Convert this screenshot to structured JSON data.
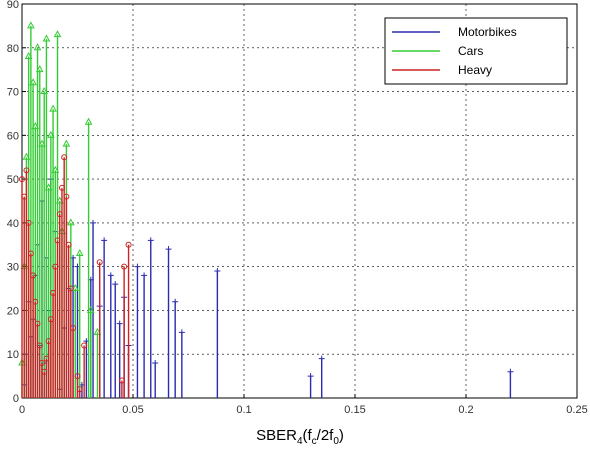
{
  "chart_data": {
    "type": "stem",
    "title": "",
    "xlabel": {
      "base": "SBER",
      "sub1": "4",
      "mid": "(f",
      "sub2": "c",
      "mid2": "/2f",
      "sub3": "0",
      "end": ")"
    },
    "ylabel": "",
    "xlim": [
      0,
      0.25
    ],
    "ylim": [
      0,
      90
    ],
    "xticks": [
      0,
      0.05,
      0.1,
      0.15,
      0.2,
      0.25
    ],
    "xtick_labels": [
      "0",
      "0.05",
      "0.1",
      "0.15",
      "0.2",
      "0.25"
    ],
    "yticks": [
      0,
      10,
      20,
      30,
      40,
      50,
      60,
      70,
      80,
      90
    ],
    "ytick_labels": [
      "0",
      "10",
      "20",
      "30",
      "40",
      "50",
      "60",
      "70",
      "80",
      "90"
    ],
    "grid": true,
    "legend_position": "top-right",
    "series": [
      {
        "name": "Motorbikes",
        "color": "#2b2bb0",
        "marker": "plus",
        "points": [
          [
            0.001,
            3
          ],
          [
            0.002,
            10
          ],
          [
            0.003,
            22
          ],
          [
            0.004,
            14
          ],
          [
            0.005,
            18
          ],
          [
            0.006,
            28
          ],
          [
            0.007,
            35
          ],
          [
            0.008,
            12
          ],
          [
            0.009,
            45
          ],
          [
            0.01,
            8
          ],
          [
            0.011,
            32
          ],
          [
            0.012,
            20
          ],
          [
            0.013,
            50
          ],
          [
            0.015,
            38
          ],
          [
            0.017,
            2
          ],
          [
            0.019,
            16
          ],
          [
            0.021,
            25
          ],
          [
            0.023,
            32
          ],
          [
            0.025,
            30
          ],
          [
            0.027,
            3
          ],
          [
            0.029,
            13
          ],
          [
            0.031,
            27
          ],
          [
            0.032,
            40
          ],
          [
            0.035,
            21
          ],
          [
            0.037,
            36
          ],
          [
            0.04,
            28
          ],
          [
            0.042,
            26
          ],
          [
            0.044,
            17
          ],
          [
            0.046,
            23
          ],
          [
            0.048,
            12
          ],
          [
            0.052,
            30
          ],
          [
            0.055,
            28
          ],
          [
            0.058,
            36
          ],
          [
            0.06,
            8
          ],
          [
            0.066,
            34
          ],
          [
            0.069,
            22
          ],
          [
            0.072,
            15
          ],
          [
            0.088,
            29
          ],
          [
            0.13,
            5
          ],
          [
            0.135,
            9
          ],
          [
            0.22,
            6
          ]
        ]
      },
      {
        "name": "Cars",
        "color": "#33cc33",
        "marker": "triangle",
        "points": [
          [
            0.0,
            8
          ],
          [
            0.001,
            30
          ],
          [
            0.002,
            55
          ],
          [
            0.003,
            78
          ],
          [
            0.004,
            85
          ],
          [
            0.005,
            72
          ],
          [
            0.006,
            62
          ],
          [
            0.007,
            80
          ],
          [
            0.008,
            75
          ],
          [
            0.009,
            58
          ],
          [
            0.01,
            70
          ],
          [
            0.011,
            82
          ],
          [
            0.012,
            48
          ],
          [
            0.013,
            60
          ],
          [
            0.014,
            66
          ],
          [
            0.015,
            52
          ],
          [
            0.016,
            83
          ],
          [
            0.017,
            45
          ],
          [
            0.018,
            38
          ],
          [
            0.02,
            58
          ],
          [
            0.022,
            40
          ],
          [
            0.024,
            25
          ],
          [
            0.026,
            33
          ],
          [
            0.03,
            63
          ],
          [
            0.031,
            20
          ],
          [
            0.034,
            15
          ]
        ]
      },
      {
        "name": "Heavy",
        "color": "#cc2222",
        "marker": "circle",
        "points": [
          [
            0.0,
            50
          ],
          [
            0.001,
            46
          ],
          [
            0.002,
            52
          ],
          [
            0.003,
            40
          ],
          [
            0.004,
            33
          ],
          [
            0.005,
            28
          ],
          [
            0.006,
            22
          ],
          [
            0.007,
            17
          ],
          [
            0.008,
            12
          ],
          [
            0.009,
            8
          ],
          [
            0.01,
            6
          ],
          [
            0.011,
            9
          ],
          [
            0.012,
            13
          ],
          [
            0.013,
            18
          ],
          [
            0.014,
            24
          ],
          [
            0.015,
            30
          ],
          [
            0.016,
            36
          ],
          [
            0.017,
            42
          ],
          [
            0.018,
            48
          ],
          [
            0.019,
            55
          ],
          [
            0.02,
            46
          ],
          [
            0.021,
            35
          ],
          [
            0.022,
            25
          ],
          [
            0.023,
            16
          ],
          [
            0.025,
            5
          ],
          [
            0.026,
            2
          ],
          [
            0.028,
            12
          ],
          [
            0.035,
            31
          ],
          [
            0.045,
            4
          ],
          [
            0.046,
            30
          ],
          [
            0.048,
            35
          ]
        ]
      }
    ]
  }
}
